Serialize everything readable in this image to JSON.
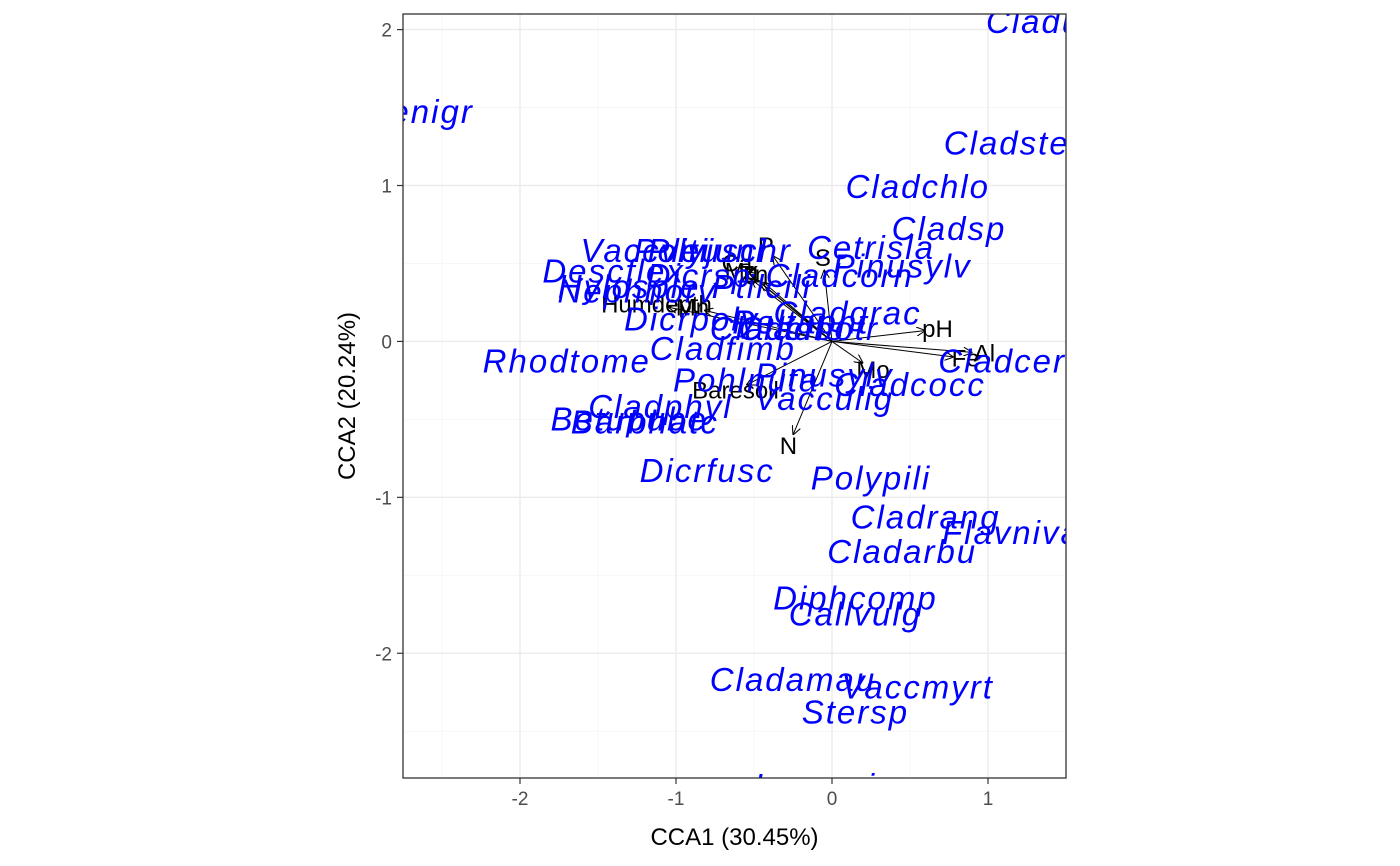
{
  "chart_data": {
    "type": "scatter",
    "subtype": "cca-biplot",
    "xlabel": "CCA1 (30.45%)",
    "ylabel": "CCA2 (20.24%)",
    "xlim": [
      -2.75,
      1.5
    ],
    "ylim": [
      -2.8,
      2.1
    ],
    "x_ticks": [
      -2,
      -1,
      0,
      1
    ],
    "y_ticks": [
      -2,
      -1,
      0,
      1,
      2
    ],
    "x_tick_labels": [
      "-2",
      "-1",
      "0",
      "1"
    ],
    "y_tick_labels": [
      "-2",
      "-1",
      "0",
      "1",
      "2"
    ],
    "grid": true,
    "colors": {
      "species": "#0000ff",
      "env": "#000000",
      "panel_border": "#333333",
      "grid_major": "#ebebeb",
      "grid_minor": "#f5f5f5"
    },
    "species": [
      {
        "label": "Cladunci",
        "x": 1.45,
        "y": 2.05
      },
      {
        "label": "Empenigr",
        "x": -2.8,
        "y": 1.47
      },
      {
        "label": "Cladstel",
        "x": 1.15,
        "y": 1.27
      },
      {
        "label": "Cladchlo",
        "x": 0.55,
        "y": 0.99
      },
      {
        "label": "Cladsp",
        "x": 0.75,
        "y": 0.72
      },
      {
        "label": "Vaccviti",
        "x": -1.2,
        "y": 0.58
      },
      {
        "label": "Pleuschr",
        "x": -0.72,
        "y": 0.58
      },
      {
        "label": "Polyjuni",
        "x": -0.85,
        "y": 0.58
      },
      {
        "label": "Cetrisla",
        "x": 0.25,
        "y": 0.6
      },
      {
        "label": "Pinusylv",
        "x": 0.45,
        "y": 0.48
      },
      {
        "label": "Descflex",
        "x": -1.4,
        "y": 0.45
      },
      {
        "label": "Dicrsp",
        "x": -0.85,
        "y": 0.42
      },
      {
        "label": "Cladcorn",
        "x": 0.05,
        "y": 0.42
      },
      {
        "label": "Hylosple",
        "x": -1.3,
        "y": 0.35
      },
      {
        "label": "Ptilcili",
        "x": -0.45,
        "y": 0.35
      },
      {
        "label": "Nephnorv",
        "x": -1.25,
        "y": 0.32
      },
      {
        "label": "Cladgrac",
        "x": 0.1,
        "y": 0.18
      },
      {
        "label": "Dicrpoly",
        "x": -0.9,
        "y": 0.14
      },
      {
        "label": "Peltapht",
        "x": -0.2,
        "y": 0.12
      },
      {
        "label": "Cladcris",
        "x": -0.35,
        "y": 0.08
      },
      {
        "label": "Cladbotr",
        "x": -0.15,
        "y": 0.08
      },
      {
        "label": "Rhodtome",
        "x": -1.7,
        "y": -0.13
      },
      {
        "label": "Cladfimb",
        "x": -0.7,
        "y": -0.05
      },
      {
        "label": "Cladcerv",
        "x": 1.15,
        "y": -0.13
      },
      {
        "label": "Cladcocc",
        "x": 0.5,
        "y": -0.28
      },
      {
        "label": "Pohlnuta",
        "x": -0.55,
        "y": -0.25
      },
      {
        "label": "Pinusylv",
        "x": -0.05,
        "y": -0.22
      },
      {
        "label": "Vacculig",
        "x": -0.05,
        "y": -0.37
      },
      {
        "label": "Cladphyl",
        "x": -1.1,
        "y": -0.42
      },
      {
        "label": "Betupube",
        "x": -1.3,
        "y": -0.5
      },
      {
        "label": "Barbhatc",
        "x": -1.2,
        "y": -0.52
      },
      {
        "label": "Dicrfusc",
        "x": -0.8,
        "y": -0.83
      },
      {
        "label": "Polypili",
        "x": 0.25,
        "y": -0.88
      },
      {
        "label": "Cladrang",
        "x": 0.6,
        "y": -1.13
      },
      {
        "label": "Flavniva",
        "x": 1.15,
        "y": -1.23
      },
      {
        "label": "Cladarbu",
        "x": 0.45,
        "y": -1.35
      },
      {
        "label": "Diphcomp",
        "x": 0.15,
        "y": -1.65
      },
      {
        "label": "Callvulg",
        "x": 0.15,
        "y": -1.75
      },
      {
        "label": "Cladamau",
        "x": -0.25,
        "y": -2.17
      },
      {
        "label": "Vaccmyrt",
        "x": 0.55,
        "y": -2.22
      },
      {
        "label": "Stersp",
        "x": 0.15,
        "y": -2.38
      },
      {
        "label": "Icmaeric",
        "x": -0.05,
        "y": -2.85
      }
    ],
    "env_vectors": [
      {
        "label": "P",
        "x": -0.38,
        "y": 0.55
      },
      {
        "label": "S",
        "x": -0.05,
        "y": 0.46
      },
      {
        "label": "Ca",
        "x": -0.55,
        "y": 0.45
      },
      {
        "label": "Mg",
        "x": -0.52,
        "y": 0.4
      },
      {
        "label": "K",
        "x": -0.46,
        "y": 0.38
      },
      {
        "label": "Zn",
        "x": -0.44,
        "y": 0.38
      },
      {
        "label": "Humdepth",
        "x": -1.05,
        "y": 0.22
      },
      {
        "label": "Mn",
        "x": -0.82,
        "y": 0.2
      },
      {
        "label": "pH",
        "x": 0.6,
        "y": 0.07
      },
      {
        "label": "Al",
        "x": 0.9,
        "y": -0.07
      },
      {
        "label": "Fe",
        "x": 0.78,
        "y": -0.1
      },
      {
        "label": "Mo",
        "x": 0.2,
        "y": -0.14
      },
      {
        "label": "Baresoil",
        "x": -0.55,
        "y": -0.28
      },
      {
        "label": "N",
        "x": -0.25,
        "y": -0.6
      }
    ]
  }
}
